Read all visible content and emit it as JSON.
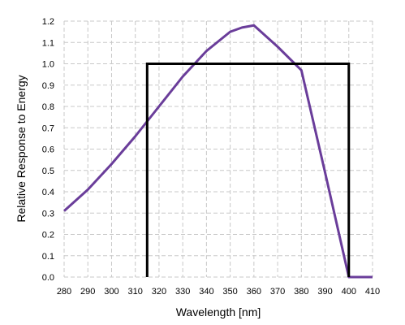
{
  "chart_data": {
    "type": "line",
    "xlabel": "Wavelength [nm]",
    "ylabel": "Relative Response to Energy",
    "xlim": [
      280,
      410
    ],
    "ylim": [
      0.0,
      1.2
    ],
    "x_ticks": [
      280,
      290,
      300,
      310,
      320,
      330,
      340,
      350,
      360,
      370,
      380,
      390,
      400,
      410
    ],
    "y_ticks": [
      0.0,
      0.1,
      0.2,
      0.3,
      0.4,
      0.5,
      0.6,
      0.7,
      0.8,
      0.9,
      1.0,
      1.1,
      1.2
    ],
    "x_tick_labels": [
      "280",
      "290",
      "300",
      "310",
      "320",
      "330",
      "340",
      "350",
      "360",
      "370",
      "380",
      "390",
      "400",
      "410"
    ],
    "y_tick_labels": [
      "0.0",
      "0.1",
      "0.2",
      "0.3",
      "0.4",
      "0.5",
      "0.6",
      "0.7",
      "0.8",
      "0.9",
      "1.0",
      "1.1",
      "1.2"
    ],
    "grid": true,
    "series": [
      {
        "color": "#6a3d9a",
        "x": [
          280,
          290,
          300,
          310,
          320,
          330,
          340,
          350,
          355,
          360,
          370,
          380,
          390,
          400,
          410
        ],
        "y": [
          0.31,
          0.41,
          0.53,
          0.66,
          0.8,
          0.94,
          1.06,
          1.15,
          1.17,
          1.18,
          1.08,
          0.97,
          0.49,
          0.0,
          0.0
        ]
      },
      {
        "color": "#000000",
        "x": [
          315,
          315,
          400,
          400
        ],
        "y": [
          0.0,
          1.0,
          1.0,
          0.0
        ]
      }
    ]
  }
}
